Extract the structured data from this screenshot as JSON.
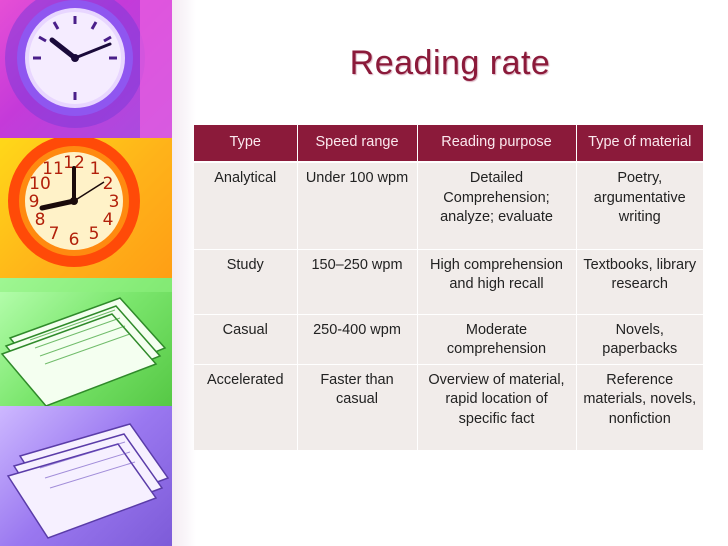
{
  "slide": {
    "title": "Reading rate"
  },
  "images": [
    {
      "name": "purple-clock-photo"
    },
    {
      "name": "orange-clock-photo"
    },
    {
      "name": "green-papers-photo"
    },
    {
      "name": "lavender-papers-photo"
    }
  ],
  "table": {
    "headers": [
      "Type",
      "Speed range",
      "Reading purpose",
      "Type of material"
    ],
    "rows": [
      [
        "Analytical",
        "Under 100 wpm",
        "Detailed Comprehension; analyze; evaluate",
        "Poetry, argumentative writing"
      ],
      [
        "Study",
        "150–250 wpm",
        "High comprehension and high recall",
        "Textbooks, library research"
      ],
      [
        "Casual",
        "250-400 wpm",
        "Moderate comprehension",
        "Novels, paperbacks"
      ],
      [
        "Accelerated",
        "Faster than casual",
        "Overview of material, rapid location of specific fact",
        "Reference materials, novels, nonfiction"
      ]
    ]
  },
  "colors": {
    "title": "#8b1a3a",
    "header_bg": "#8b1a3a",
    "header_text": "#fbe8ee",
    "cell_bg": "#f1ecea"
  }
}
